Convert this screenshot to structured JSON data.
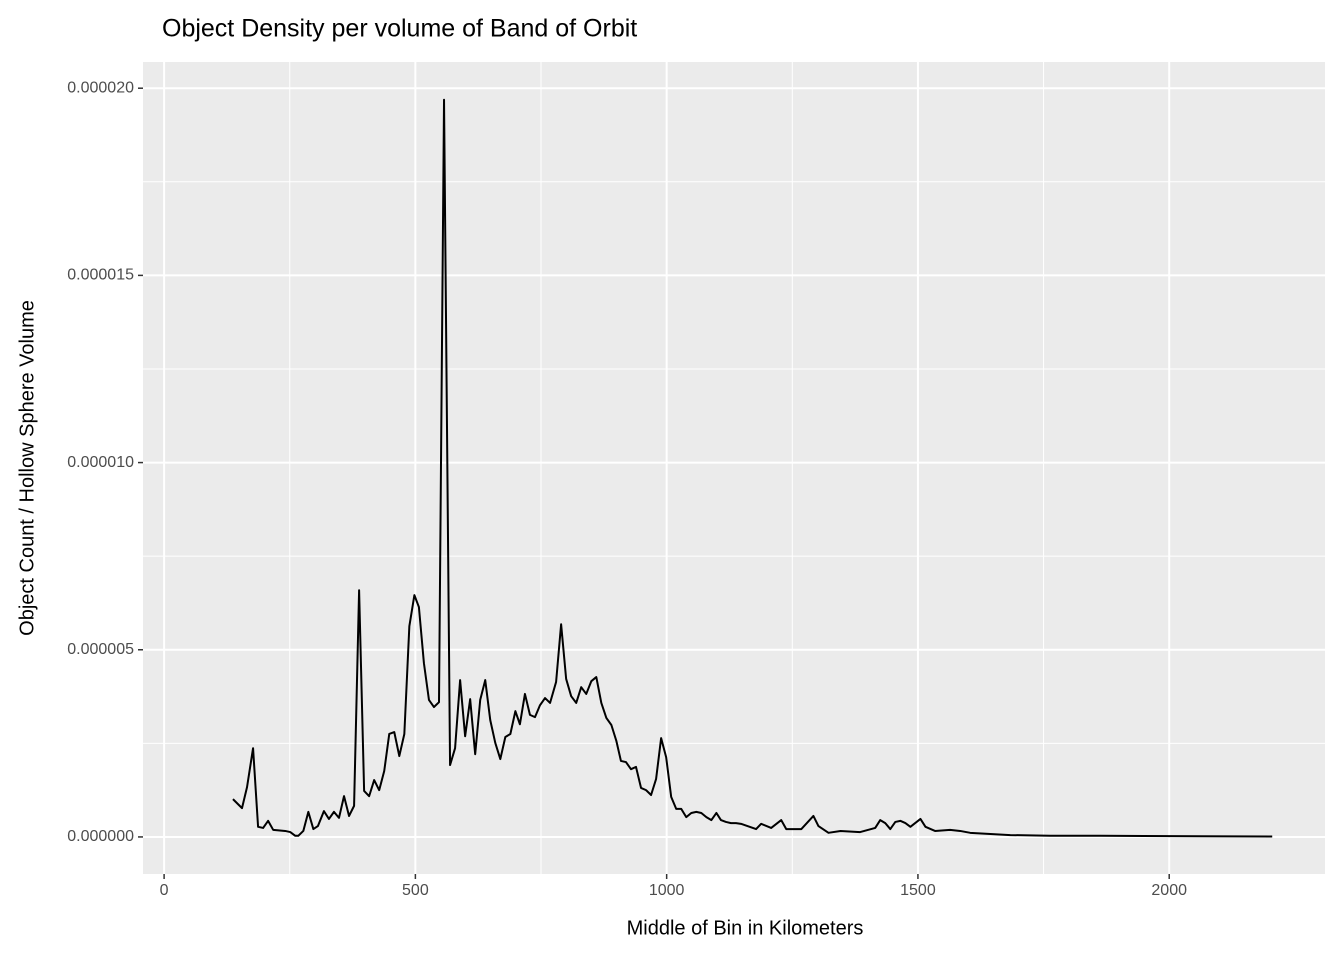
{
  "chart_data": {
    "type": "line",
    "title": "Object Density per volume of Band of Orbit",
    "x_label": "Middle of Bin in Kilometers",
    "y_label": "Object Count / Hollow Sphere Volume",
    "x": [
      137,
      155,
      165,
      177,
      187,
      197,
      207,
      217,
      241,
      251,
      261,
      267,
      277,
      287,
      297,
      306,
      318,
      328,
      338,
      348,
      358,
      368,
      378,
      388,
      398,
      408,
      418,
      428,
      438,
      448,
      458,
      468,
      478,
      488,
      498,
      507,
      517,
      527,
      537,
      547,
      557,
      569,
      579,
      589,
      599,
      609,
      619,
      629,
      639,
      649,
      659,
      669,
      679,
      689,
      699,
      708,
      718,
      728,
      738,
      748,
      758,
      768,
      780,
      790,
      800,
      810,
      820,
      830,
      840,
      850,
      860,
      870,
      880,
      890,
      900,
      909,
      919,
      929,
      939,
      949,
      959,
      969,
      979,
      989,
      999,
      1009,
      1019,
      1029,
      1039,
      1049,
      1059,
      1069,
      1079,
      1089,
      1099,
      1108,
      1118,
      1128,
      1138,
      1148,
      1178,
      1188,
      1208,
      1228,
      1238,
      1268,
      1292,
      1302,
      1322,
      1346,
      1385,
      1415,
      1425,
      1435,
      1445,
      1455,
      1465,
      1475,
      1485,
      1505,
      1515,
      1534,
      1564,
      1584,
      1604,
      1644,
      1684,
      1763,
      1863,
      2062,
      2205
    ],
    "series": [
      {
        "name": "density",
        "color": "#000000",
        "values": [
          1.01e-06,
          7.7e-07,
          1.33e-06,
          2.37e-06,
          2.7e-07,
          2.4e-07,
          4.3e-07,
          1.9e-07,
          1.6e-07,
          1.3e-07,
          3e-08,
          3e-08,
          1.6e-07,
          6.7e-07,
          2.1e-07,
          2.9e-07,
          6.9e-07,
          4.8e-07,
          6.7e-07,
          5.1e-07,
          1.09e-06,
          5.6e-07,
          8.3e-07,
          6.59e-06,
          1.23e-06,
          1.09e-06,
          1.52e-06,
          1.25e-06,
          1.76e-06,
          2.75e-06,
          2.8e-06,
          2.16e-06,
          2.75e-06,
          5.63e-06,
          6.46e-06,
          6.14e-06,
          4.64e-06,
          3.66e-06,
          3.47e-06,
          3.6e-06,
          1.969e-05,
          1.92e-06,
          2.37e-06,
          4.19e-06,
          2.69e-06,
          3.68e-06,
          2.21e-06,
          3.66e-06,
          4.19e-06,
          3.12e-06,
          2.51e-06,
          2.08e-06,
          2.67e-06,
          2.75e-06,
          3.36e-06,
          3.01e-06,
          3.82e-06,
          3.26e-06,
          3.2e-06,
          3.52e-06,
          3.71e-06,
          3.58e-06,
          4.14e-06,
          5.68e-06,
          4.22e-06,
          3.76e-06,
          3.58e-06,
          4e-06,
          3.82e-06,
          4.16e-06,
          4.27e-06,
          3.58e-06,
          3.18e-06,
          2.99e-06,
          2.56e-06,
          2.03e-06,
          2e-06,
          1.81e-06,
          1.87e-06,
          1.31e-06,
          1.25e-06,
          1.12e-06,
          1.55e-06,
          2.64e-06,
          2.13e-06,
          1.07e-06,
          7.5e-07,
          7.5e-07,
          5.3e-07,
          6.4e-07,
          6.7e-07,
          6.4e-07,
          5.3e-07,
          4.5e-07,
          6.4e-07,
          4.5e-07,
          4e-07,
          3.7e-07,
          3.7e-07,
          3.5e-07,
          2.1e-07,
          3.5e-07,
          2.4e-07,
          4.5e-07,
          2.1e-07,
          2.1e-07,
          5.6e-07,
          2.9e-07,
          1.1e-07,
          1.6e-07,
          1.3e-07,
          2.4e-07,
          4.5e-07,
          3.7e-07,
          2.1e-07,
          4e-07,
          4.3e-07,
          3.7e-07,
          2.7e-07,
          4.8e-07,
          2.7e-07,
          1.6e-07,
          1.9e-07,
          1.6e-07,
          1.1e-07,
          8e-08,
          5e-08,
          3e-08,
          3e-08,
          2e-08,
          1e-08
        ]
      }
    ],
    "xlim": [
      -42,
      2310
    ],
    "xticks": [
      0,
      500,
      1000,
      1500,
      2000
    ],
    "ylim": [
      -9.9e-07,
      2.07e-05
    ],
    "yticks": [
      {
        "value": 0,
        "label": "0.000000"
      },
      {
        "value": 5e-06,
        "label": "0.000005"
      },
      {
        "value": 1e-05,
        "label": "0.000010"
      },
      {
        "value": 1.5e-05,
        "label": "0.000015"
      },
      {
        "value": 2e-05,
        "label": "0.000020"
      }
    ],
    "grid": true,
    "minor_grid": true
  }
}
